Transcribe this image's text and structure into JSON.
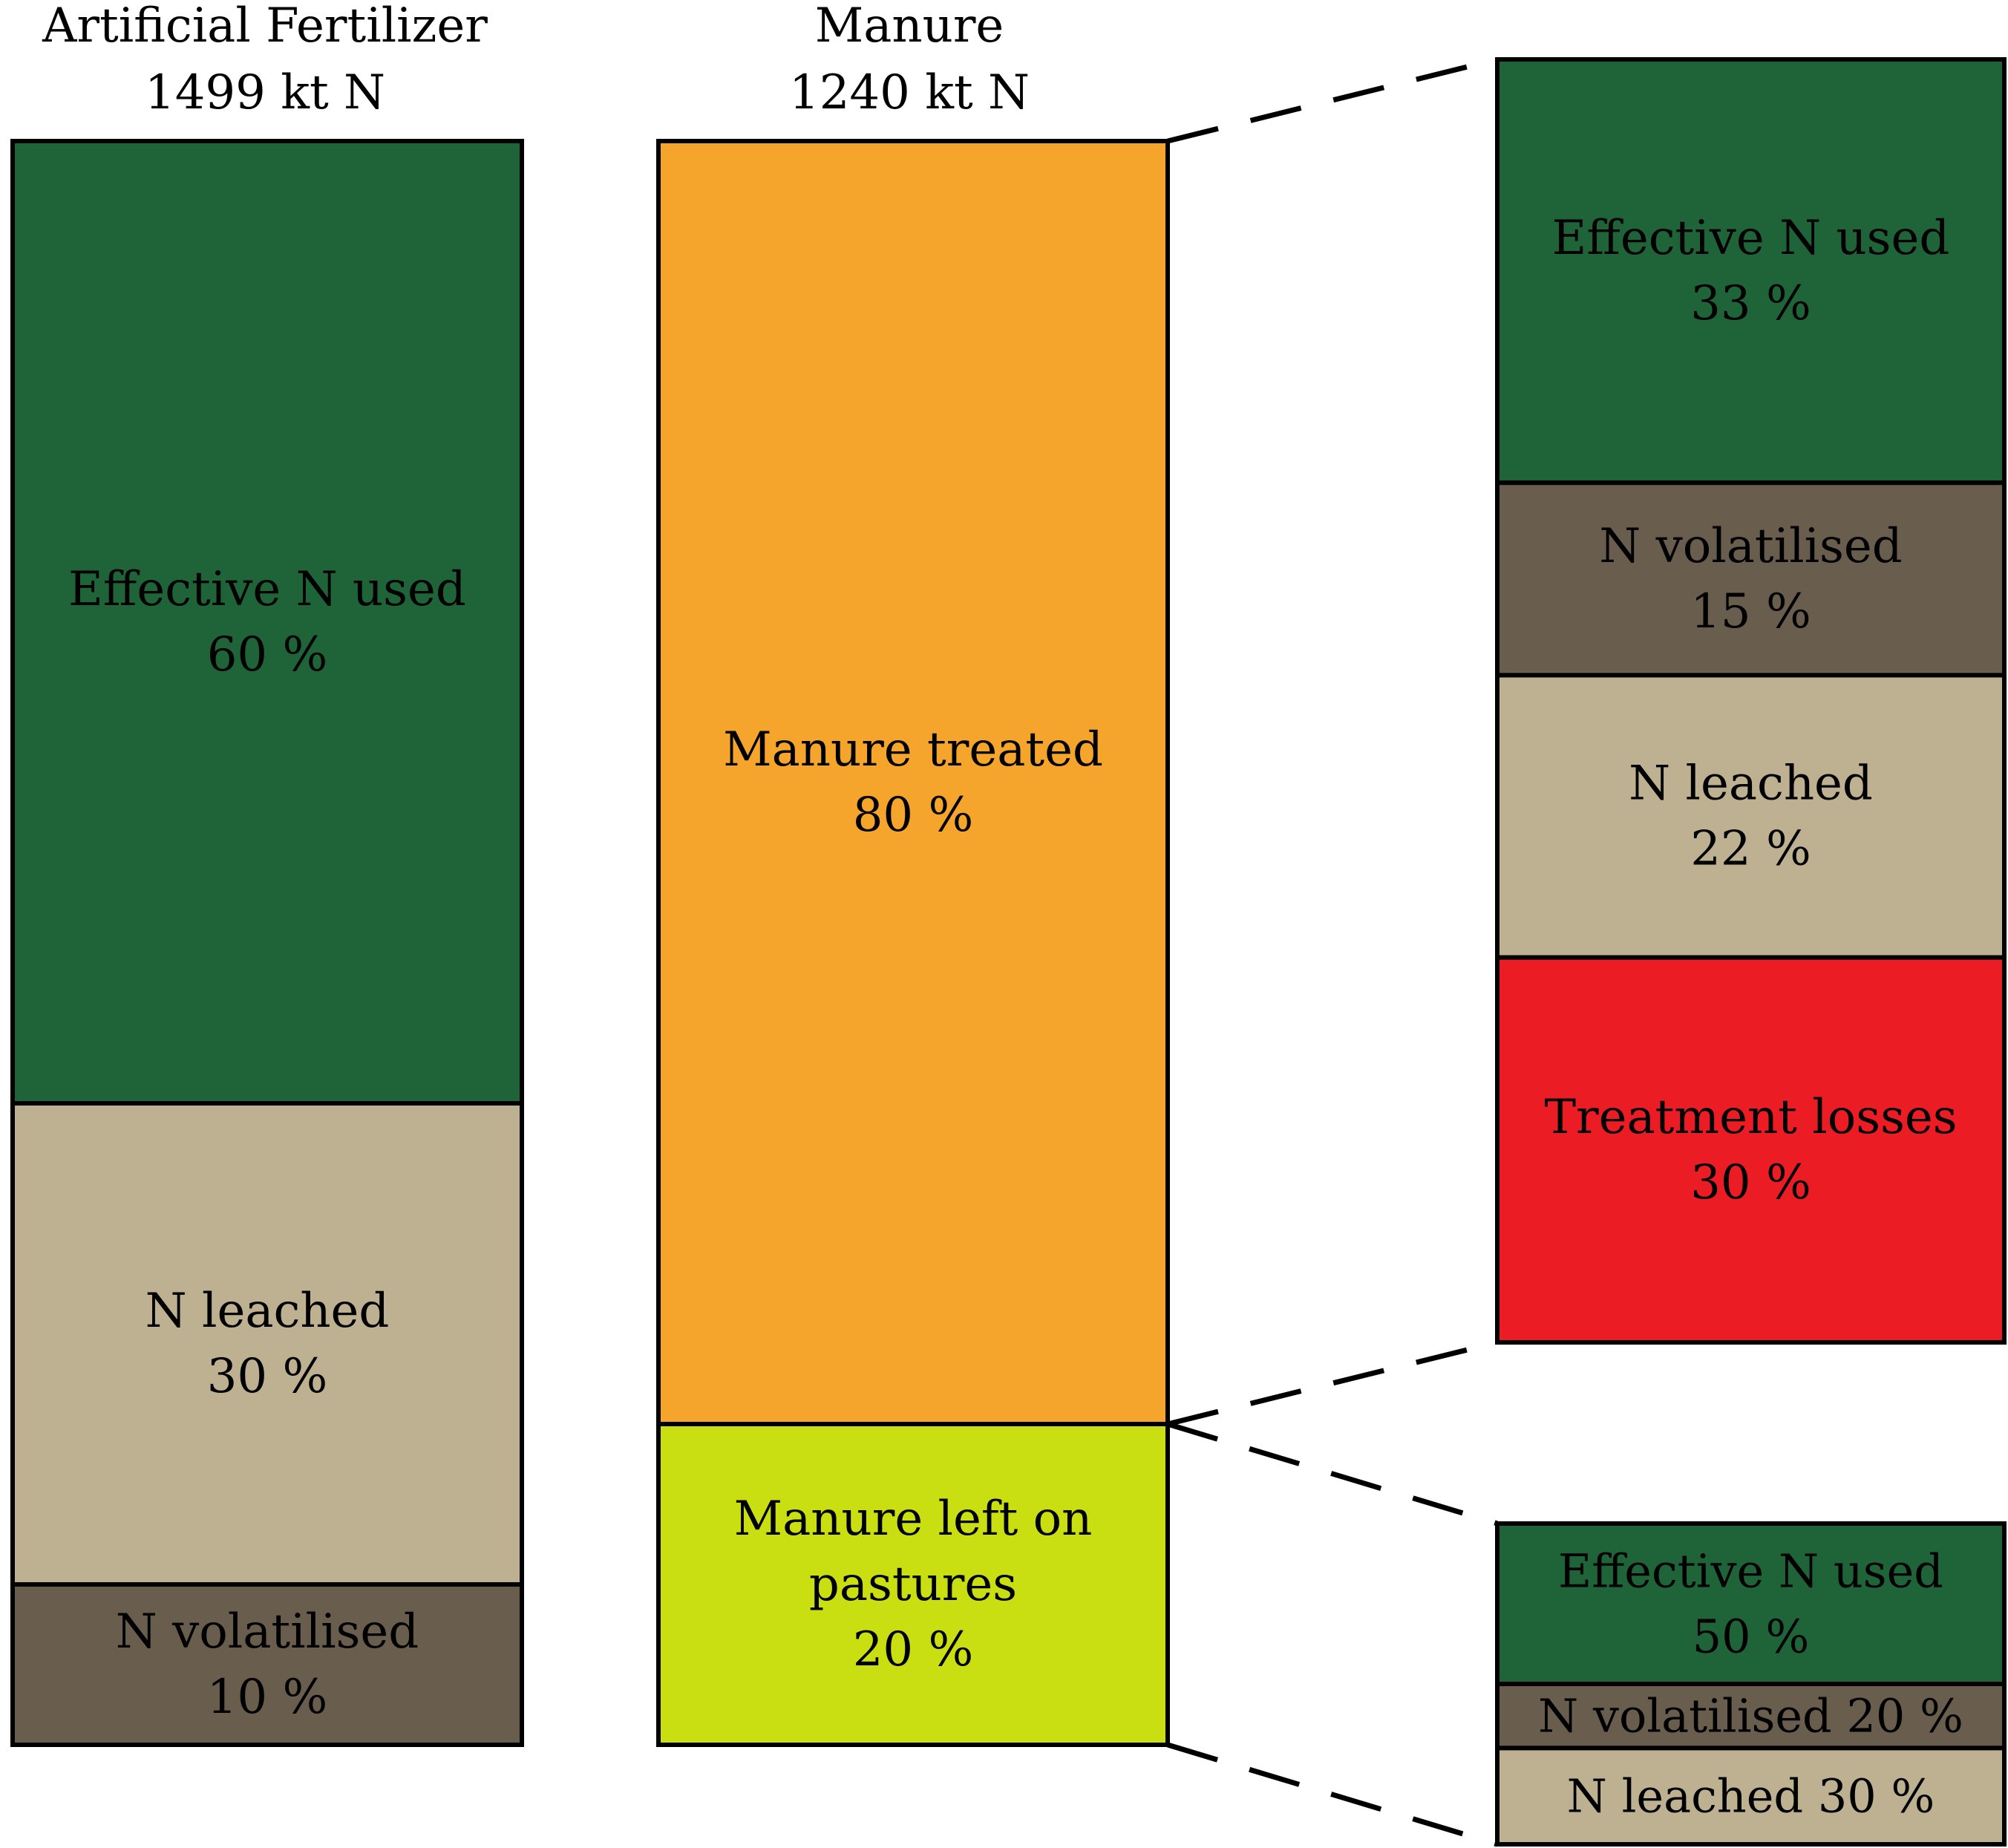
{
  "chart_data": {
    "type": "bar",
    "title": "",
    "columns": [
      {
        "id": "artificial",
        "title_line1": "Artificial Fertilizer",
        "title_line2": "1499 kt N",
        "segments": [
          {
            "lines": [
              "Effective N used",
              "60 %"
            ],
            "value": 60,
            "color": "#1f6439"
          },
          {
            "lines": [
              "N leached",
              "30 %"
            ],
            "value": 30,
            "color": "#beb191"
          },
          {
            "lines": [
              "N volatilised",
              "10 %"
            ],
            "value": 10,
            "color": "#695d4e"
          }
        ]
      },
      {
        "id": "manure",
        "title_line1": "Manure",
        "title_line2": "1240 kt N",
        "segments": [
          {
            "lines": [
              "Manure treated",
              "80 %"
            ],
            "value": 80,
            "color": "#f5a42c"
          },
          {
            "lines": [
              "Manure left on",
              "pastures",
              "20 %"
            ],
            "value": 20,
            "color": "#cadf12"
          }
        ]
      },
      {
        "id": "treated-breakdown",
        "source_segment": "Manure treated",
        "segments": [
          {
            "lines": [
              "Effective N used",
              "33 %"
            ],
            "value": 33,
            "color": "#1f6439"
          },
          {
            "lines": [
              "N volatilised",
              "15 %"
            ],
            "value": 15,
            "color": "#695d4e"
          },
          {
            "lines": [
              "N leached",
              "22 %"
            ],
            "value": 22,
            "color": "#beb191"
          },
          {
            "lines": [
              "Treatment losses",
              "30 %"
            ],
            "value": 30,
            "color": "#ec1c25"
          }
        ]
      },
      {
        "id": "pasture-breakdown",
        "source_segment": "Manure left on pastures",
        "segments": [
          {
            "lines": [
              "Effective N used",
              "50 %"
            ],
            "value": 50,
            "color": "#1f6439"
          },
          {
            "lines": [
              "N volatilised 20 %"
            ],
            "value": 20,
            "color": "#695d4e"
          },
          {
            "lines": [
              "N leached 30 %"
            ],
            "value": 30,
            "color": "#beb191"
          }
        ]
      }
    ]
  }
}
